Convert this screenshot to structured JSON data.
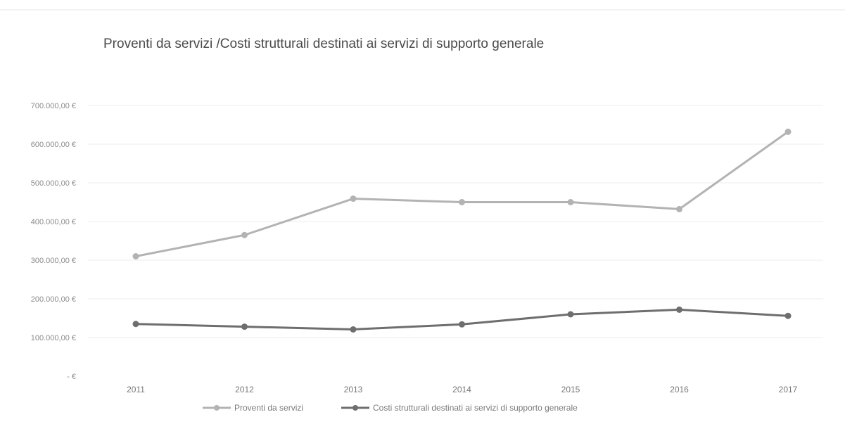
{
  "chart_data": {
    "type": "line",
    "title": "Proventi da servizi /Costi strutturali destinati ai servizi di supporto generale",
    "xlabel": "",
    "ylabel": "",
    "categories": [
      "2011",
      "2012",
      "2013",
      "2014",
      "2015",
      "2016",
      "2017"
    ],
    "y_tick_labels": [
      "- €",
      "100.000,00 €",
      "200.000,00 €",
      "300.000,00 €",
      "400.000,00 €",
      "500.000,00 €",
      "600.000,00 €",
      "700.000,00 €"
    ],
    "y_tick_values": [
      0,
      100000,
      200000,
      300000,
      400000,
      500000,
      600000,
      700000
    ],
    "ylim": [
      0,
      700000
    ],
    "grid": true,
    "legend_position": "bottom",
    "series": [
      {
        "name": "Proventi da servizi",
        "color": "#b3b3b3",
        "values": [
          310000,
          365000,
          459000,
          450000,
          450000,
          432000,
          632000
        ]
      },
      {
        "name": "Costi strutturali destinati ai servizi di supporto generale",
        "color": "#6e6e6e",
        "values": [
          135000,
          128000,
          121000,
          134000,
          160000,
          172000,
          156000
        ]
      }
    ]
  }
}
